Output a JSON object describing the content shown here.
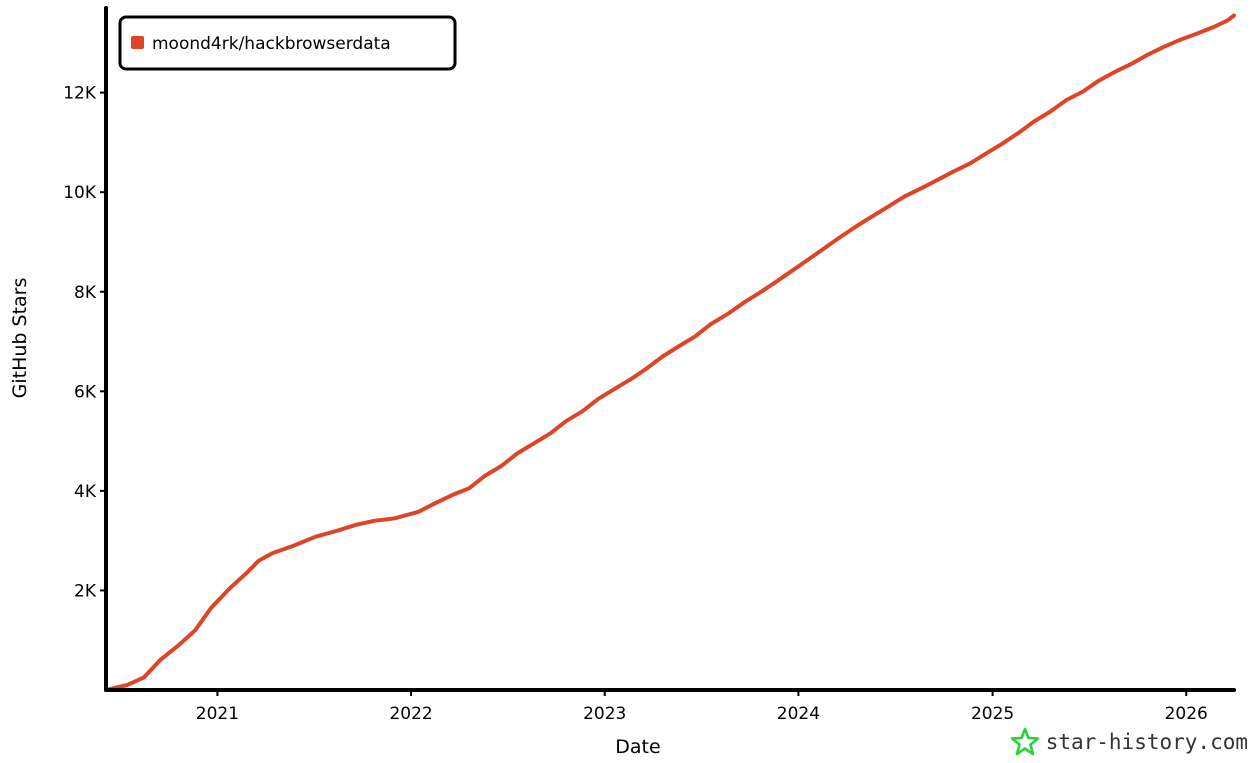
{
  "chart_data": {
    "type": "line",
    "title": "",
    "xlabel": "Date",
    "ylabel": "GitHub Stars",
    "x_range": [
      "2020-06-05",
      "2026-04-01"
    ],
    "ylim": [
      0,
      13700
    ],
    "x_ticks": [
      {
        "date": "2021-01-01",
        "label": "2021"
      },
      {
        "date": "2022-01-01",
        "label": "2022"
      },
      {
        "date": "2023-01-01",
        "label": "2023"
      },
      {
        "date": "2024-01-01",
        "label": "2024"
      },
      {
        "date": "2025-01-01",
        "label": "2025"
      },
      {
        "date": "2026-01-01",
        "label": "2026"
      }
    ],
    "y_ticks": [
      {
        "value": 2000,
        "label": "2K"
      },
      {
        "value": 4000,
        "label": "4K"
      },
      {
        "value": 6000,
        "label": "6K"
      },
      {
        "value": 8000,
        "label": "8K"
      },
      {
        "value": 10000,
        "label": "10K"
      },
      {
        "value": 12000,
        "label": "12K"
      }
    ],
    "grid": false,
    "legend_position": "top-left",
    "series": [
      {
        "name": "moond4rk/hackbrowserdata",
        "color": "#dd4528",
        "x": [
          "2020-06-05",
          "2020-07-15",
          "2020-08-15",
          "2020-09-15",
          "2020-10-20",
          "2020-11-20",
          "2020-12-20",
          "2021-01-25",
          "2021-02-25",
          "2021-03-20",
          "2021-04-15",
          "2021-05-25",
          "2021-07-05",
          "2021-08-15",
          "2021-09-20",
          "2021-10-25",
          "2021-12-01",
          "2022-01-15",
          "2022-02-15",
          "2022-03-20",
          "2022-04-20",
          "2022-05-20",
          "2022-06-20",
          "2022-07-20",
          "2022-08-20",
          "2022-09-20",
          "2022-10-20",
          "2022-11-20",
          "2022-12-20",
          "2023-01-20",
          "2023-02-20",
          "2023-03-20",
          "2023-04-20",
          "2023-05-20",
          "2023-06-20",
          "2023-07-20",
          "2023-08-20",
          "2023-09-20",
          "2023-10-20",
          "2023-11-20",
          "2023-12-20",
          "2024-01-20",
          "2024-02-20",
          "2024-03-20",
          "2024-04-20",
          "2024-05-20",
          "2024-06-20",
          "2024-07-20",
          "2024-08-20",
          "2024-09-20",
          "2024-10-20",
          "2024-11-20",
          "2024-12-20",
          "2025-01-20",
          "2025-02-20",
          "2025-03-20",
          "2025-04-20",
          "2025-05-20",
          "2025-06-20",
          "2025-07-20",
          "2025-08-20",
          "2025-09-20",
          "2025-10-20",
          "2025-11-20",
          "2025-12-20",
          "2026-01-20",
          "2026-02-20",
          "2026-03-20",
          "2026-04-01"
        ],
        "y": [
          0,
          100,
          250,
          600,
          900,
          1200,
          1650,
          2050,
          2350,
          2600,
          2750,
          2900,
          3080,
          3200,
          3320,
          3400,
          3450,
          3580,
          3750,
          3920,
          4050,
          4300,
          4500,
          4750,
          4950,
          5150,
          5400,
          5600,
          5850,
          6050,
          6250,
          6450,
          6700,
          6900,
          7100,
          7350,
          7550,
          7780,
          7980,
          8200,
          8420,
          8650,
          8880,
          9100,
          9320,
          9520,
          9720,
          9920,
          10080,
          10250,
          10420,
          10580,
          10780,
          10980,
          11200,
          11420,
          11620,
          11850,
          12020,
          12240,
          12420,
          12580,
          12760,
          12920,
          13060,
          13180,
          13310,
          13450,
          13550
        ]
      }
    ]
  },
  "watermark": {
    "text": "star-history.com",
    "icon": "star-icon",
    "icon_color": "#2ad23a"
  }
}
